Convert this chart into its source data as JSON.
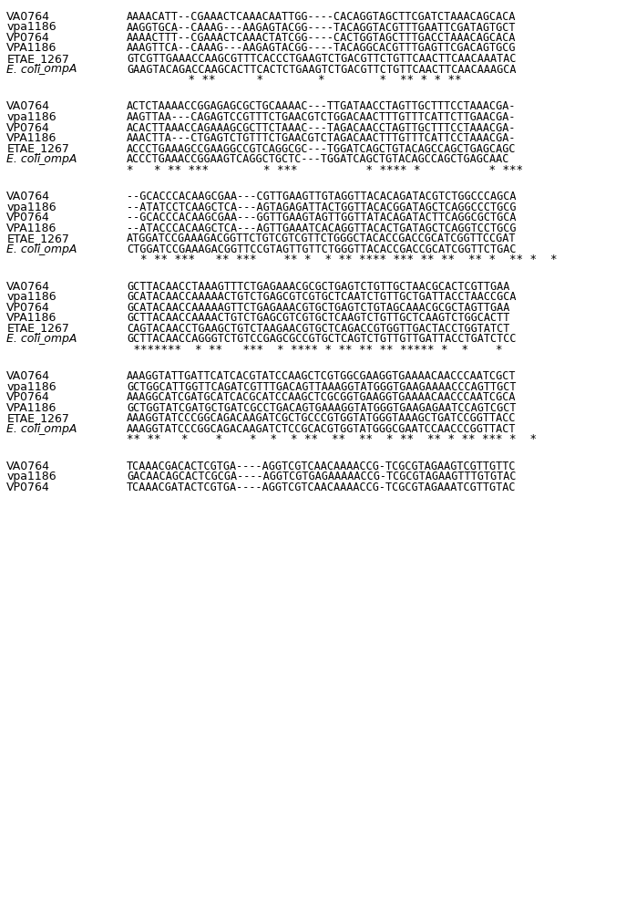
{
  "blocks": [
    {
      "sequences": [
        {
          "label": "VA0764",
          "italic": false,
          "seq": "AAAACATT--CGAAACTCAAACAATTGG----CACAGGTAGCTTCGATCTAAACAGCACA"
        },
        {
          "label": "vpa1186",
          "italic": false,
          "seq": "AAGGTGCA--CAAAG---AAGAGTACGG----TACAGGTACGTTTGAATTCGATAGTGCT"
        },
        {
          "label": "VP0764",
          "italic": false,
          "seq": "AAAACTTT--CGAAACTCAAACTATCGG----CACTGGTAGCTTTGACCTAAACAGCACA"
        },
        {
          "label": "VPA1186",
          "italic": false,
          "seq": "AAAGTTCA--CAAAG---AAGAGTACGG----TACAGGCACGTTTGAGTTCGACAGTGCG"
        },
        {
          "label": "ETAE_1267",
          "italic": false,
          "seq": "GTCGTTGAAACCAAGCGTTTCACCCTGAAGTCTGACGTTCTGTTCAACTTCAACAAATAC"
        },
        {
          "label": "E. coli_ompA",
          "italic": true,
          "seq": "GAAGTACAGACCAAGCACTTCACTCTGAAGTCTGACGTTCTGTTCAACTTCAACAAAGCA"
        },
        {
          "label": "",
          "italic": false,
          "seq": "         * **      *        *        *  ** * * **"
        }
      ]
    },
    {
      "sequences": [
        {
          "label": "VA0764",
          "italic": false,
          "seq": "ACTCTAAAACCGGAGAGCGCTGCAAAAC---TTGATAACCTAGTTGCTTTCCTAAACGA-"
        },
        {
          "label": "vpa1186",
          "italic": false,
          "seq": "AAGTTAA---CAGAGTCCGTTTCTGAACGTCTGGACAACTTTGTTTCATTCTTGAACGA-"
        },
        {
          "label": "VP0764",
          "italic": false,
          "seq": "ACACTTAAACCAGAAAGCGCTTCTAAAC---TAGACAACCTAGTTGCTTTCCTAAACGA-"
        },
        {
          "label": "VPA1186",
          "italic": false,
          "seq": "AAACTTA---CTGAGTCTGTTTCTGAACGTCTAGACAACTTTGTTTCATTCCTAAACGA-"
        },
        {
          "label": "ETAE_1267",
          "italic": false,
          "seq": "ACCCTGAAAGCCGAAGGCCGTCAGGCGC---TGGATCAGCTGTACAGCCAGCTGAGCAGC"
        },
        {
          "label": "E. coli_ompA",
          "italic": true,
          "seq": "ACCCTGAAACCGGAAGTCAGGCTGCTC---TGGATCAGCTGTACAGCCAGCTGAGCAAC"
        },
        {
          "label": "",
          "italic": false,
          "seq": "*   * ** ***        * ***          * **** *          * ***"
        }
      ]
    },
    {
      "sequences": [
        {
          "label": "VA0764",
          "italic": false,
          "seq": "--GCACCCACAAGCGAA---CGTTGAAGTTGTAGGTTACACAGATACGTCTGGCCCAGCA"
        },
        {
          "label": "vpa1186",
          "italic": false,
          "seq": "--ATATCCTCAAGCTCA---AGTAGAGATTACTGGTTACACGGATAGCTCAGGCCCTGCG"
        },
        {
          "label": "VP0764",
          "italic": false,
          "seq": "--GCACCCACAAGCGAA---GGTTGAAGTAGTTGGTTATACAGATACTTCAGGCGCTGCA"
        },
        {
          "label": "VPA1186",
          "italic": false,
          "seq": "--ATACCCACAAGCTCA---AGTTGAAATCACAGGTTACACTGATAGCTCAGGTCCTGCG"
        },
        {
          "label": "ETAE_1267",
          "italic": false,
          "seq": "ATGGATCCGAAAGACGGTTCTGTCGTCGTTCTGGGCTACACCGACCGCATCGGTTCCGAT"
        },
        {
          "label": "E. coli_ompA",
          "italic": true,
          "seq": "CTGGATCCGAAAGACGGTTCCGTAGTTGTTCTGGGTTACACCGACCGCATCGGTTCTGAC"
        },
        {
          "label": "",
          "italic": false,
          "seq": "  * ** ***   ** ***    ** *  * ** **** *** ** **  ** *  ** *  *"
        }
      ]
    },
    {
      "sequences": [
        {
          "label": "VA0764",
          "italic": false,
          "seq": "GCTTACAACCTAAAGTTTCTGAGAAACGCGCTGAGTCTGTTGCTAACGCACTCGTTGAA"
        },
        {
          "label": "vpa1186",
          "italic": false,
          "seq": "GCATACAACCAAAAACTGTCTGAGCGTCGTGCTCAATCTGTTGCTGATTACCTAACCGCA"
        },
        {
          "label": "VP0764",
          "italic": false,
          "seq": "GCATACAACCAAAAAGTTCTGAGAAACGTGCTGAGTCTGTAGCAAACGCGCTAGTTGAA"
        },
        {
          "label": "VPA1186",
          "italic": false,
          "seq": "GCTTACAACCAAAACTGTCTGAGCGTCGTGCTCAAGTCTGTTGCTCAAGTCTGGCACTT"
        },
        {
          "label": "ETAE_1267",
          "italic": false,
          "seq": "CAGTACAACCTGAAGCTGTCTAAGAACGTGCTCAGACCGTGGTTGACTACCTGGTATCT"
        },
        {
          "label": "E. coli_ompA",
          "italic": true,
          "seq": "GCTTACAACCAGGGTCTGTCCGAGCGCCGTGCTCAGTCTGTTGTTGATTACCTGATCTCC"
        },
        {
          "label": "",
          "italic": false,
          "seq": " *******  * **   ***  * **** * ** ** ** ***** *  *    *"
        }
      ]
    },
    {
      "sequences": [
        {
          "label": "VA0764",
          "italic": false,
          "seq": "AAAGGTATTGATTCATCACGTATCCAAGCTCGTGGCGAAGGTGAAAACAACCCAATCGCT"
        },
        {
          "label": "vpa1186",
          "italic": false,
          "seq": "GCTGGCATTGGTTCAGATCGTTTGACAGTTAAAGGTATGGGTGAAGAAAACCCAGTTGCT"
        },
        {
          "label": "VP0764",
          "italic": false,
          "seq": "AAAGGCATCGATGCATCACGCATCCAAGCTCGCGGTGAAGGTGAAAACAACCCAATCGCA"
        },
        {
          "label": "VPA1186",
          "italic": false,
          "seq": "GCTGGTATCGATGCTGATCGCCTGACAGTGAAAGGTATGGGTGAAGAGAATCCAGTCGCT"
        },
        {
          "label": "ETAE_1267",
          "italic": false,
          "seq": "AAAGGTATCCCGGCAGACAAGATCGCTGCCCGTGGTATGGGTAAAGCTGATCCGGTTACC"
        },
        {
          "label": "E. coli_ompA",
          "italic": true,
          "seq": "AAAGGTATCCCGGCAGACAAGATCTCCGCACGTGGTATGGGCGAATCCAACCCGGTTACT"
        },
        {
          "label": "",
          "italic": false,
          "seq": "** **   *    *    *  *  * **  **  **  * **  ** * ** *** *  *"
        }
      ]
    },
    {
      "sequences": [
        {
          "label": "VA0764",
          "italic": false,
          "seq": "TCAAACGACACTCGTGA----AGGTCGTCAACAAAACCG-TCGCGTAGAAGTCGTTGTTC"
        },
        {
          "label": "vpa1186",
          "italic": false,
          "seq": "GACAACAGCACTCGCGA----AGGTCGTGAGAAAAACCG-TCGCGTAGAAGTTTGTGTAC"
        },
        {
          "label": "VP0764",
          "italic": false,
          "seq": "TCAAACGATACTCGTGA----AGGTCGTCAACAAAACCG-TCGCGTAGAAATCGTTGTAC"
        }
      ]
    }
  ],
  "font_family": "monospace",
  "label_fontsize": 9,
  "seq_fontsize": 8.5,
  "star_fontsize": 9,
  "label_color": "#000000",
  "seq_color": "#000000",
  "background_color": "#ffffff",
  "italic_label_parts": {
    "E. coli_ompA": [
      "E. coli",
      "_ompA"
    ]
  }
}
